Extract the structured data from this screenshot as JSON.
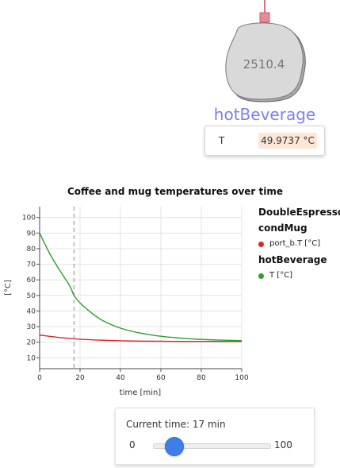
{
  "component": {
    "name": "hotBeverage",
    "value_display": "2510.4",
    "color_label": "#7f7ff0",
    "color_body": "#d9d9d9",
    "color_connector": "#d9727c"
  },
  "inspector": {
    "variable": "T",
    "value": "49.9737 °C",
    "highlight": "#fde6d6"
  },
  "slider": {
    "label": "Current time: 17 min",
    "min": "0",
    "max": "100",
    "value": 17,
    "color": "#3f7ee8"
  },
  "chart_data": {
    "type": "line",
    "title": "Coffee and mug temperatures over time",
    "xlabel": "time [min]",
    "ylabel": "[°C]",
    "xlim": [
      0,
      100
    ],
    "ylim": [
      3,
      107
    ],
    "xticks": [
      0,
      20,
      40,
      60,
      80,
      100
    ],
    "yticks": [
      10,
      20,
      30,
      40,
      50,
      60,
      70,
      80,
      90,
      100
    ],
    "grid": true,
    "legend_position": "right",
    "current_time_marker": 17,
    "legend": [
      {
        "group": "DoubleEspresso",
        "items": []
      },
      {
        "group": "condMug",
        "items": [
          {
            "name": "port_b.T [°C]",
            "color": "#d62728"
          }
        ]
      },
      {
        "group": "hotBeverage",
        "items": [
          {
            "name": "T [°C]",
            "color": "#2ca02c"
          }
        ]
      }
    ],
    "series": [
      {
        "name": "T [°C]",
        "color": "#2ca02c",
        "x": [
          0,
          5,
          10,
          15,
          17,
          20,
          25,
          30,
          35,
          40,
          45,
          50,
          60,
          70,
          80,
          90,
          100
        ],
        "y": [
          90,
          76.8,
          66.0,
          55.9,
          50.0,
          45.2,
          39.5,
          34.8,
          31.5,
          29.0,
          27.2,
          25.8,
          23.8,
          22.6,
          21.8,
          21.3,
          21.0
        ]
      },
      {
        "name": "port_b.T [°C]",
        "color": "#d62728",
        "x": [
          0,
          10,
          20,
          30,
          40,
          50,
          60,
          70,
          80,
          90,
          100
        ],
        "y": [
          24.6,
          23.0,
          21.9,
          21.3,
          20.9,
          20.7,
          20.6,
          20.5,
          20.5,
          20.5,
          20.5
        ]
      }
    ]
  }
}
